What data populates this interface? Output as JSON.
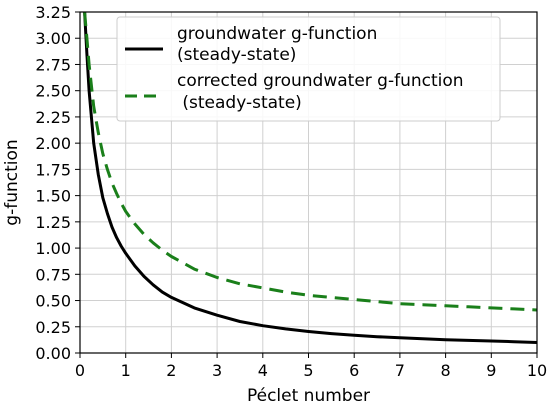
{
  "chart_data": {
    "type": "line",
    "xlabel": "Péclet number",
    "ylabel": "g-function",
    "xlim": [
      0,
      10
    ],
    "ylim": [
      0,
      3.25
    ],
    "xticks": [
      "0",
      "1",
      "2",
      "3",
      "4",
      "5",
      "6",
      "7",
      "8",
      "9",
      "10"
    ],
    "yticks": [
      "0.00",
      "0.25",
      "0.50",
      "0.75",
      "1.00",
      "1.25",
      "1.50",
      "1.75",
      "2.00",
      "2.25",
      "2.50",
      "2.75",
      "3.00",
      "3.25"
    ],
    "grid": true,
    "legend_position": "top-right",
    "series": [
      {
        "name_lines": [
          "groundwater g-function",
          "(steady-state)"
        ],
        "color": "#000000",
        "style": "solid",
        "x": [
          0.1,
          0.15,
          0.2,
          0.3,
          0.4,
          0.5,
          0.6,
          0.7,
          0.8,
          0.9,
          1.0,
          1.2,
          1.4,
          1.6,
          1.8,
          2.0,
          2.5,
          3.0,
          3.5,
          4.0,
          4.5,
          5.0,
          5.5,
          6.0,
          6.5,
          7.0,
          7.5,
          8.0,
          8.5,
          9.0,
          9.5,
          10.0
        ],
        "y": [
          3.25,
          2.85,
          2.5,
          2.0,
          1.7,
          1.48,
          1.33,
          1.2,
          1.1,
          1.02,
          0.95,
          0.83,
          0.73,
          0.65,
          0.58,
          0.53,
          0.43,
          0.36,
          0.3,
          0.26,
          0.23,
          0.205,
          0.185,
          0.17,
          0.155,
          0.145,
          0.135,
          0.127,
          0.12,
          0.114,
          0.108,
          0.1
        ]
      },
      {
        "name_lines": [
          "corrected groundwater g-function",
          " (steady-state)"
        ],
        "color": "#1a7f1a",
        "style": "dashed",
        "x": [
          0.1,
          0.15,
          0.2,
          0.3,
          0.4,
          0.5,
          0.6,
          0.7,
          0.8,
          0.9,
          1.0,
          1.2,
          1.4,
          1.6,
          1.8,
          2.0,
          2.5,
          3.0,
          3.5,
          4.0,
          4.5,
          5.0,
          5.5,
          6.0,
          6.5,
          7.0,
          7.5,
          8.0,
          8.5,
          9.0,
          9.5,
          10.0
        ],
        "y": [
          3.25,
          3.0,
          2.75,
          2.35,
          2.1,
          1.9,
          1.75,
          1.62,
          1.52,
          1.43,
          1.35,
          1.23,
          1.13,
          1.05,
          0.98,
          0.92,
          0.8,
          0.72,
          0.66,
          0.62,
          0.58,
          0.55,
          0.53,
          0.51,
          0.49,
          0.47,
          0.46,
          0.45,
          0.44,
          0.43,
          0.42,
          0.41
        ]
      }
    ]
  }
}
